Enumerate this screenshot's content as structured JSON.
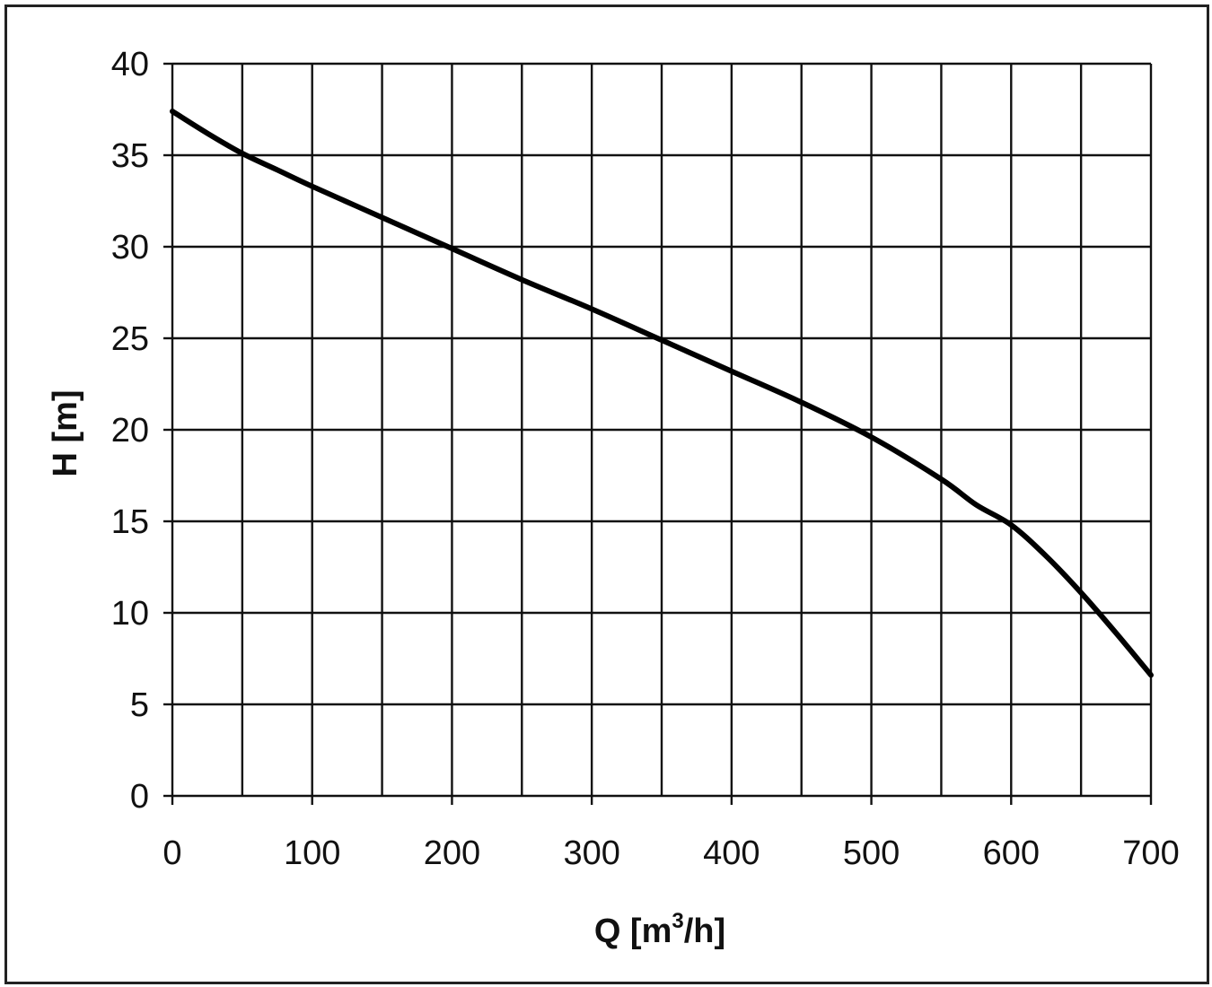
{
  "chart_data": {
    "type": "line",
    "xlabel": "Q [m³/h]",
    "xlabel_parts": {
      "main": "Q [m",
      "sup": "3",
      "tail": "/h]"
    },
    "ylabel": "H [m]",
    "xlim": [
      0,
      700
    ],
    "ylim": [
      0,
      40
    ],
    "xticks": [
      0,
      100,
      200,
      300,
      400,
      500,
      600,
      700
    ],
    "xtick_labels": [
      "0",
      "100",
      "200",
      "300",
      "400",
      "500",
      "600",
      "700"
    ],
    "yticks": [
      0,
      5,
      10,
      15,
      20,
      25,
      30,
      35,
      40
    ],
    "ytick_labels": [
      "0",
      "5",
      "10",
      "15",
      "20",
      "25",
      "30",
      "35",
      "40"
    ],
    "x_grid_step": 50,
    "grid": true,
    "line_color": "#000000",
    "series": [
      {
        "x": [
          0,
          25,
          50,
          75,
          100,
          150,
          200,
          250,
          300,
          350,
          400,
          450,
          500,
          550,
          575,
          600,
          625,
          650,
          675,
          700
        ],
        "values": [
          37.4,
          36.2,
          35.1,
          34.2,
          33.3,
          31.6,
          29.9,
          28.2,
          26.6,
          24.9,
          23.2,
          21.5,
          19.6,
          17.3,
          15.9,
          14.8,
          13.1,
          11.1,
          8.9,
          6.6
        ]
      }
    ]
  }
}
